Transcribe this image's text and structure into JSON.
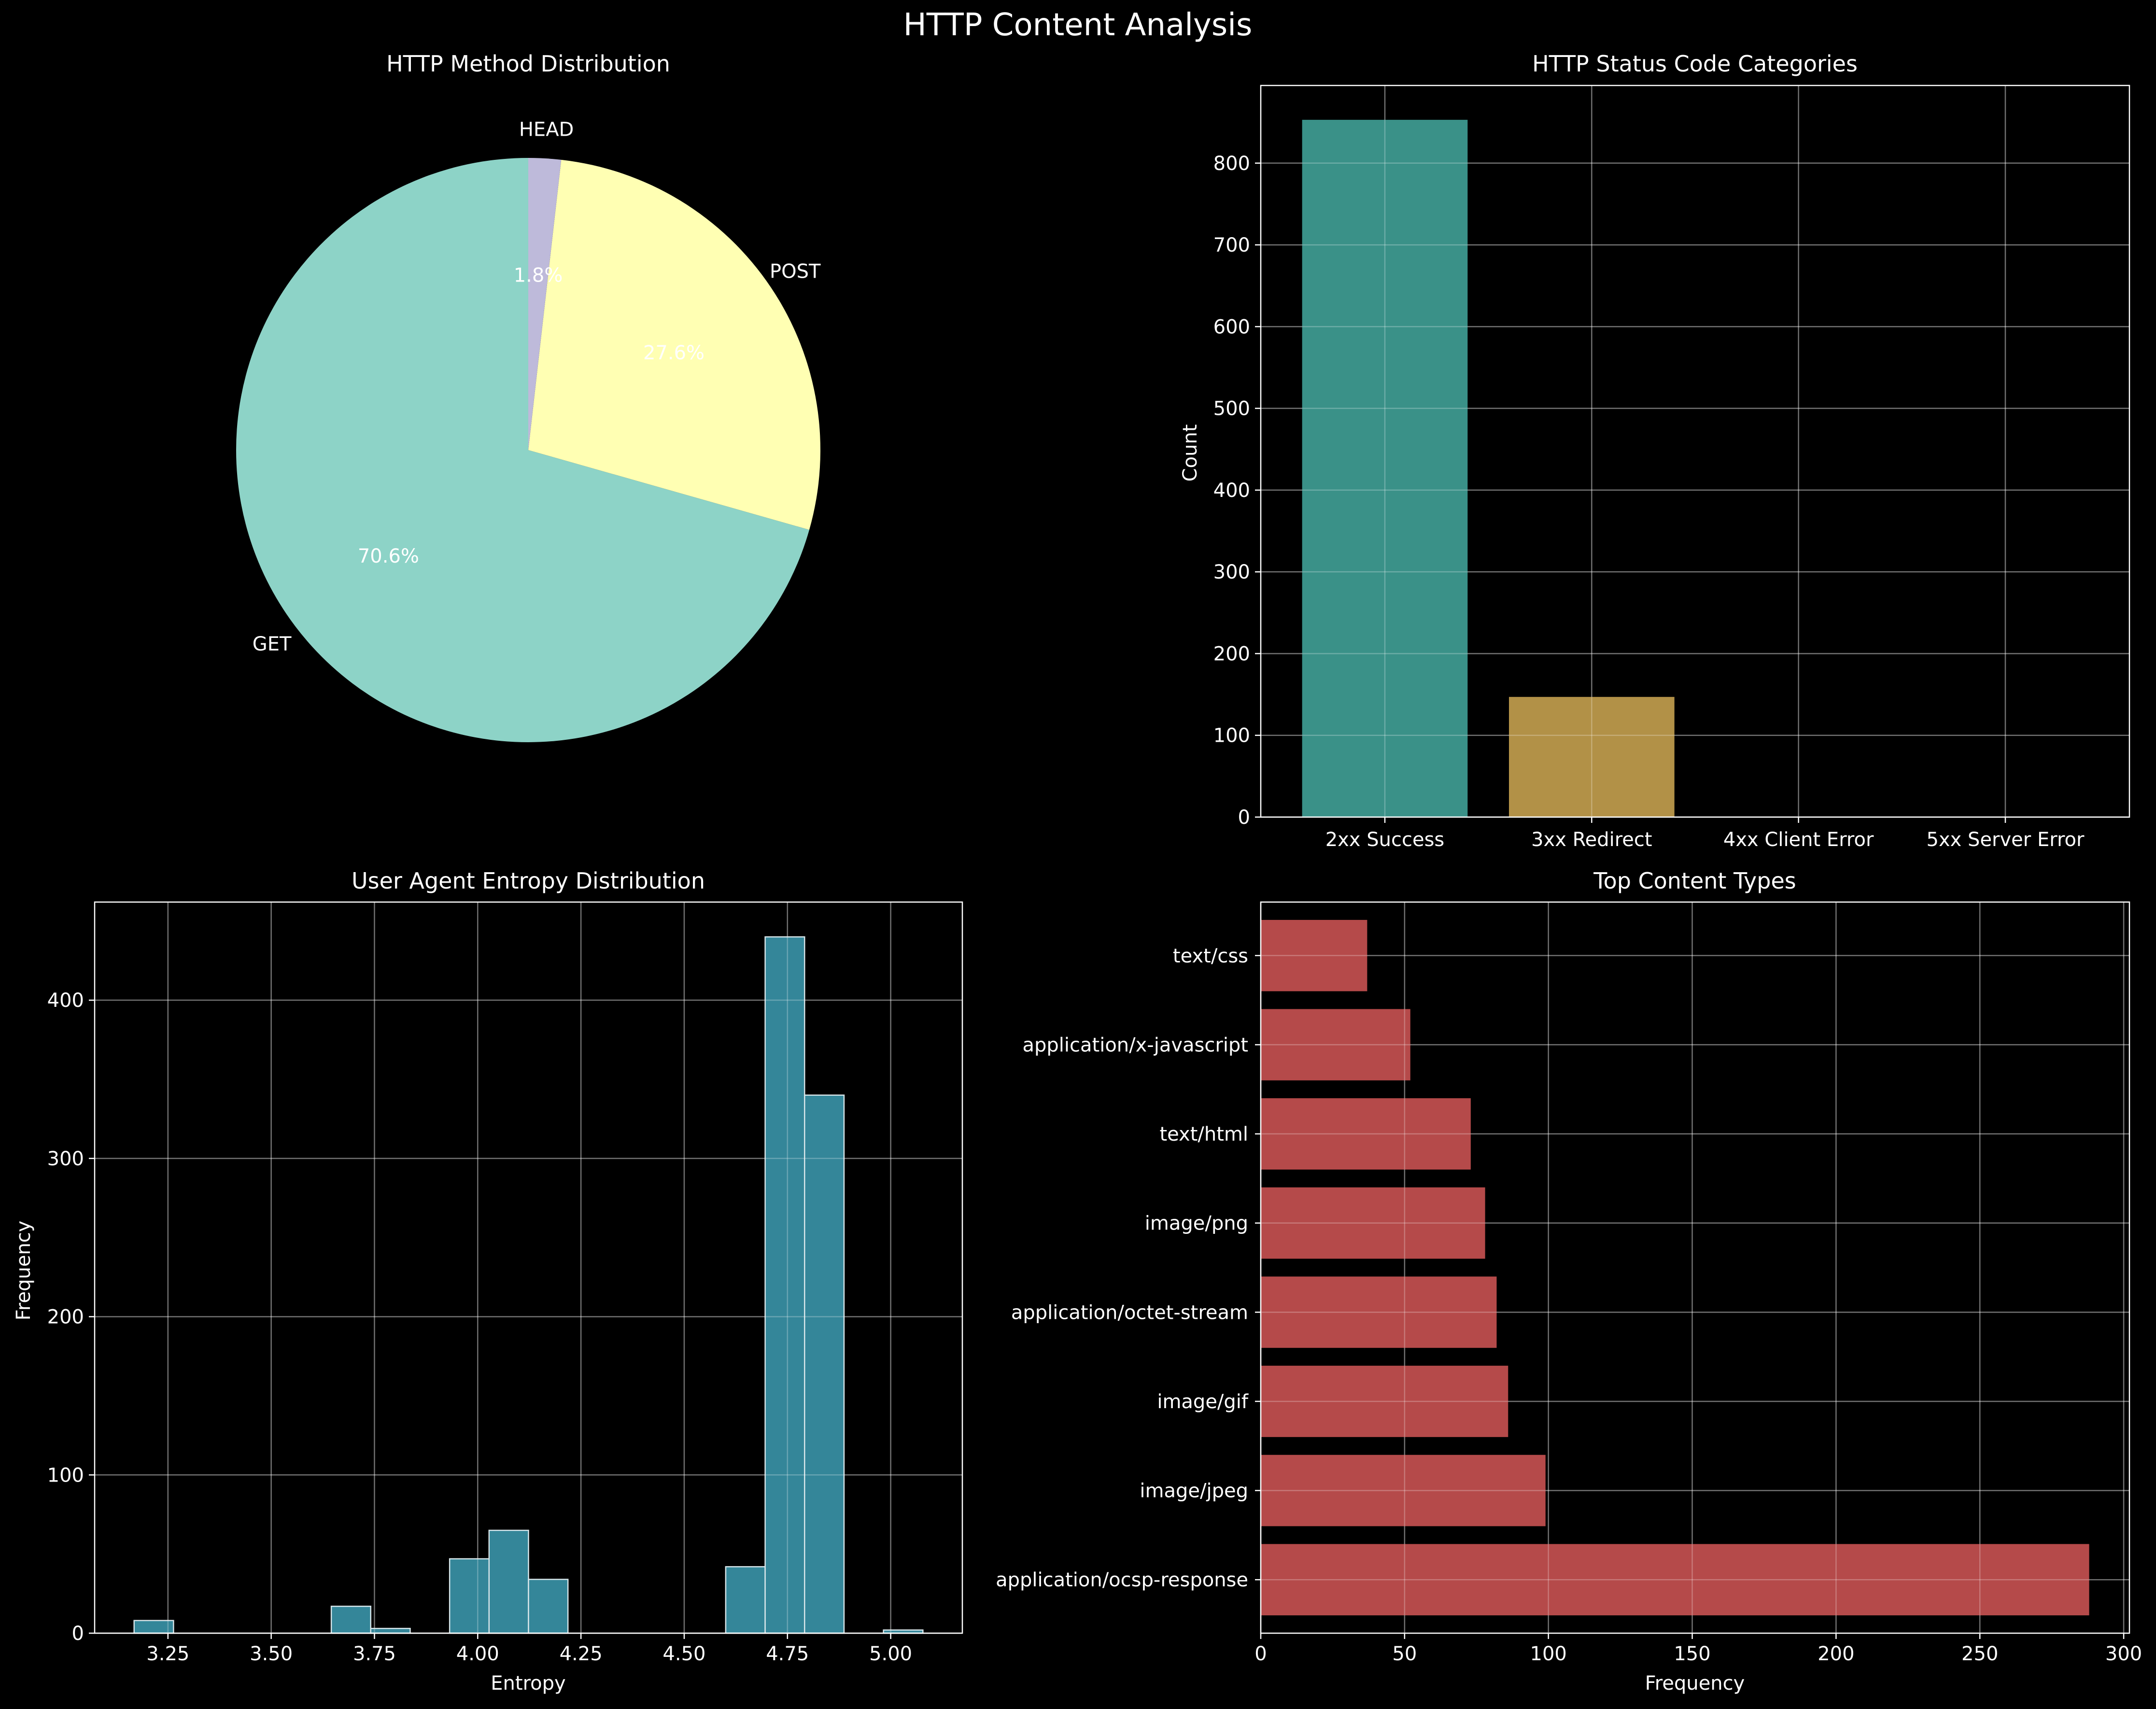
{
  "figure": {
    "title": "HTTP Content Analysis"
  },
  "chart_data": [
    {
      "type": "pie",
      "title": "HTTP Method Distribution",
      "labels": [
        "GET",
        "POST",
        "HEAD"
      ],
      "values": [
        70.6,
        27.6,
        1.8
      ],
      "pct_labels": [
        "70.6%",
        "27.6%",
        "1.8%"
      ],
      "colors": [
        "#8dd3c7",
        "#ffffb3",
        "#bebada"
      ],
      "start_angle": 90,
      "direction": "counterclockwise"
    },
    {
      "type": "bar",
      "title": "HTTP Status Code Categories",
      "categories": [
        "2xx Success",
        "3xx Redirect",
        "4xx Client Error",
        "5xx Server Error"
      ],
      "values": [
        853,
        147,
        0,
        0
      ],
      "colors": [
        "#3a9188",
        "#b29147",
        "#7e7b94",
        "#b5564f"
      ],
      "ylabel": "Count",
      "xlabel": "",
      "ylim": [
        0,
        895
      ],
      "yticks": [
        0,
        100,
        200,
        300,
        400,
        500,
        600,
        700,
        800
      ],
      "grid": true
    },
    {
      "type": "bar",
      "subtype": "histogram",
      "title": "User Agent Entropy Distribution",
      "xlabel": "Entropy",
      "ylabel": "Frequency",
      "bin_edges": [
        3.168,
        3.2635,
        3.359,
        3.4545,
        3.55,
        3.6455,
        3.741,
        3.8365,
        3.932,
        4.0275,
        4.123,
        4.2185,
        4.314,
        4.4095,
        4.505,
        4.6005,
        4.696,
        4.7915,
        4.887,
        4.9825,
        5.078
      ],
      "values": [
        8,
        0,
        0,
        0,
        0,
        17,
        3,
        0,
        47,
        65,
        34,
        0,
        0,
        0,
        0,
        42,
        440,
        340,
        0,
        2
      ],
      "color": "#348699",
      "xlim": [
        3.0725,
        5.1735
      ],
      "ylim": [
        0,
        462
      ],
      "xticks": [
        "3.25",
        "3.50",
        "3.75",
        "4.00",
        "4.25",
        "4.50",
        "4.75",
        "5.00"
      ],
      "yticks": [
        0,
        100,
        200,
        300,
        400
      ],
      "grid": true
    },
    {
      "type": "bar",
      "orientation": "horizontal",
      "title": "Top Content Types",
      "categories": [
        "application/ocsp-response",
        "image/jpeg",
        "image/gif",
        "application/octet-stream",
        "image/png",
        "text/html",
        "application/x-javascript",
        "text/css"
      ],
      "values": [
        288,
        99,
        86,
        82,
        78,
        73,
        52,
        37
      ],
      "color": "#b54a4a",
      "xlabel": "Frequency",
      "ylabel": "",
      "xlim": [
        0,
        302
      ],
      "xticks": [
        0,
        50,
        100,
        150,
        200,
        250,
        300
      ],
      "grid": true
    }
  ]
}
